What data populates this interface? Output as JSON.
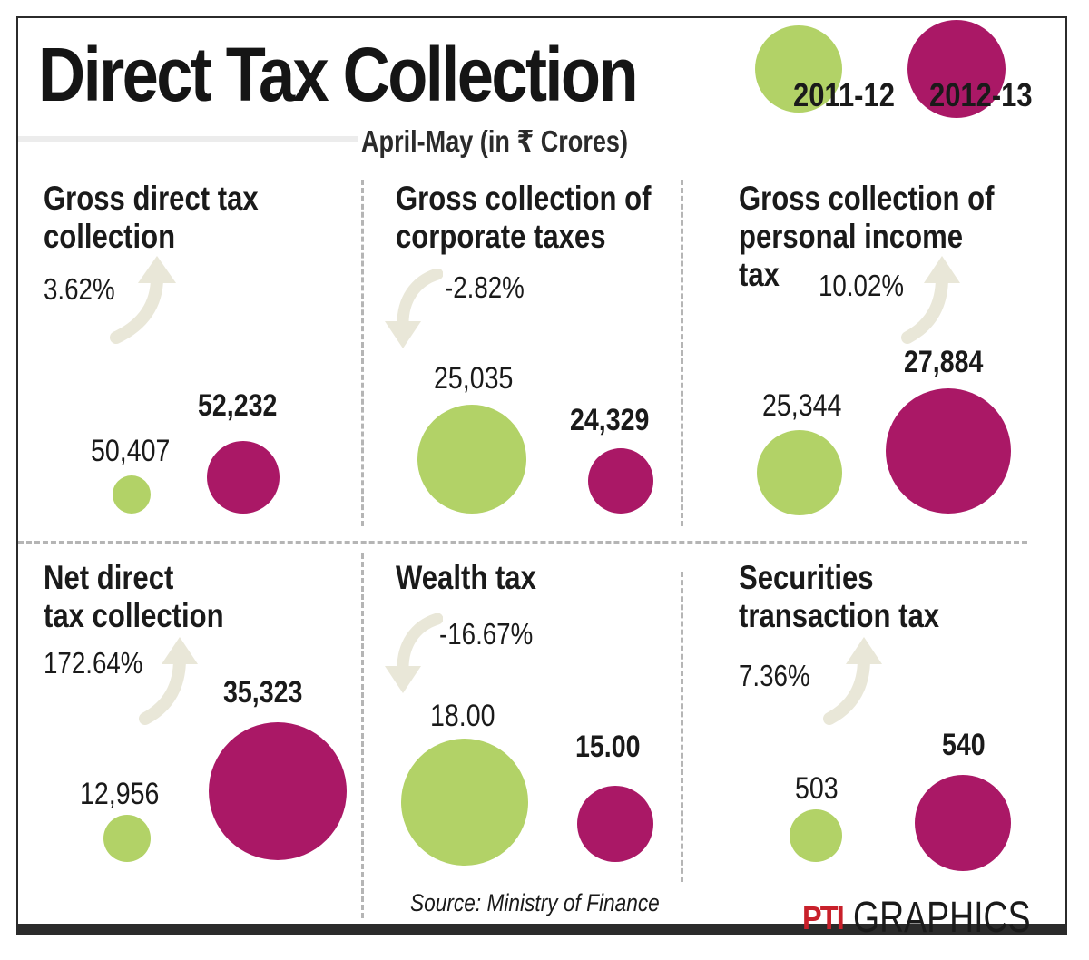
{
  "header": {
    "title": "Direct Tax Collection",
    "subtitle": "April-May (in ₹ Crores)"
  },
  "colors": {
    "year_2011": "#b2d267",
    "year_2012": "#aa1866",
    "arrow": "#e9e7d8"
  },
  "chart_data": [
    {
      "type": "bubble",
      "title": "Gross direct tax collection",
      "title_lines": [
        "Gross direct tax",
        "collection"
      ],
      "change": "3.62%",
      "direction": "up",
      "series": [
        {
          "name": "2011-12",
          "value": 50407,
          "label": "50,407"
        },
        {
          "name": "2012-13",
          "value": 52232,
          "label": "52,232"
        }
      ]
    },
    {
      "type": "bubble",
      "title": "Gross collection of corporate taxes",
      "title_lines": [
        "Gross collection of",
        "corporate taxes"
      ],
      "change": "-2.82%",
      "direction": "down",
      "series": [
        {
          "name": "2011-12",
          "value": 25035,
          "label": "25,035"
        },
        {
          "name": "2012-13",
          "value": 24329,
          "label": "24,329"
        }
      ]
    },
    {
      "type": "bubble",
      "title": "Gross collection of personal income tax",
      "title_lines": [
        "Gross collection of",
        "personal income",
        "tax"
      ],
      "change": "10.02%",
      "direction": "up",
      "series": [
        {
          "name": "2011-12",
          "value": 25344,
          "label": "25,344"
        },
        {
          "name": "2012-13",
          "value": 27884,
          "label": "27,884"
        }
      ]
    },
    {
      "type": "bubble",
      "title": "Net direct tax collection",
      "title_lines": [
        "Net direct",
        "tax collection"
      ],
      "change": "172.64%",
      "direction": "up",
      "series": [
        {
          "name": "2011-12",
          "value": 12956,
          "label": "12,956"
        },
        {
          "name": "2012-13",
          "value": 35323,
          "label": "35,323"
        }
      ]
    },
    {
      "type": "bubble",
      "title": "Wealth tax",
      "title_lines": [
        "Wealth tax"
      ],
      "change": "-16.67%",
      "direction": "down",
      "series": [
        {
          "name": "2011-12",
          "value": 18.0,
          "label": "18.00"
        },
        {
          "name": "2012-13",
          "value": 15.0,
          "label": "15.00"
        }
      ]
    },
    {
      "type": "bubble",
      "title": "Securities transaction tax",
      "title_lines": [
        "Securities",
        "transaction tax"
      ],
      "change": "7.36%",
      "direction": "up",
      "series": [
        {
          "name": "2011-12",
          "value": 503,
          "label": "503"
        },
        {
          "name": "2012-13",
          "value": 540,
          "label": "540"
        }
      ]
    }
  ],
  "legend": [
    {
      "name": "2011-12",
      "color": "#b2d267"
    },
    {
      "name": "2012-13",
      "color": "#aa1866"
    }
  ],
  "footer": {
    "source": "Source: Ministry of Finance",
    "credit_logo": "PTI",
    "credit_text": "GRAPHICS"
  }
}
